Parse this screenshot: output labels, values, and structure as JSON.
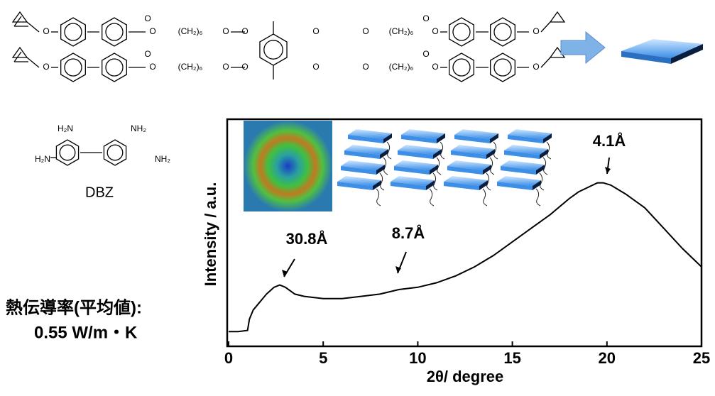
{
  "chart_data": {
    "type": "line",
    "xlabel": "2θ/ degree",
    "ylabel": "Intensity / a.u.",
    "color": "#000000",
    "xlim": [
      0,
      25
    ],
    "xticks": [
      0,
      5,
      10,
      15,
      20,
      25
    ],
    "ylim": [
      0,
      100
    ],
    "x": [
      0,
      0.5,
      1,
      1.1,
      1.3,
      1.6,
      2,
      2.4,
      2.7,
      3,
      3.5,
      4,
      5,
      6,
      7,
      8,
      9,
      10,
      11,
      12,
      13,
      14,
      15,
      16,
      17,
      18,
      18.5,
      19,
      19.5,
      19.8,
      20.2,
      21,
      22,
      23,
      24,
      25
    ],
    "values": [
      6.5,
      6.5,
      7,
      12,
      16,
      19,
      23,
      26,
      27,
      26,
      23,
      22,
      21,
      21,
      22,
      23,
      25,
      26,
      28,
      31,
      35,
      40,
      46,
      52,
      58,
      65,
      68,
      70,
      72,
      72,
      71,
      67,
      61,
      52,
      43,
      35
    ],
    "annotations": [
      "30.8Å",
      "8.7Å",
      "4.1Å"
    ]
  },
  "labels": {
    "chain": "(CH₂)₆",
    "oxygen": "O",
    "amine_left": "H₂N",
    "amine_right": "NH₂",
    "compound": "DBZ",
    "conductivity_title": "熱伝導率(平均値):",
    "conductivity_value": "0.55 W/m・K"
  }
}
